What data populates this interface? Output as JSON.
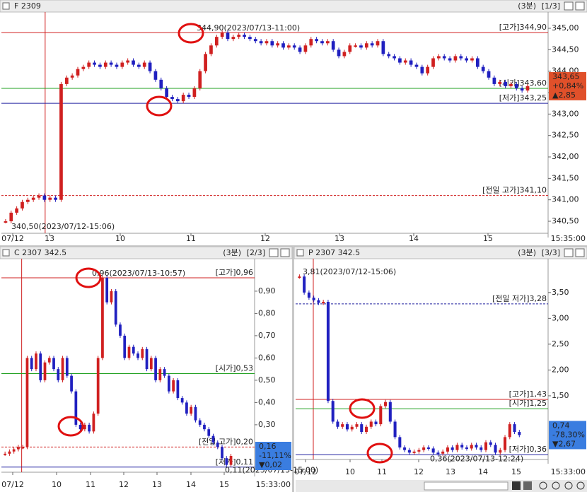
{
  "panels": [
    {
      "title": "F 2309",
      "period": "(3분)",
      "page": "[1/3]",
      "ylim": [
        340.22,
        345.33
      ],
      "yticks": [
        {
          "value": 340.5,
          "label": "340,50"
        },
        {
          "value": 341,
          "label": "341,00"
        },
        {
          "value": 341.5,
          "label": "341,50"
        },
        {
          "value": 342,
          "label": "342,00"
        },
        {
          "value": 342.5,
          "label": "342,50"
        },
        {
          "value": 343,
          "label": "343,00"
        },
        {
          "value": 343.5,
          "label": "343,50"
        },
        {
          "value": 344,
          "label": "344,00"
        },
        {
          "value": 344.5,
          "label": "344,50"
        },
        {
          "value": 345,
          "label": "345,00"
        }
      ],
      "categories": [
        "07/12",
        "13",
        "10",
        "11",
        "12",
        "13",
        "14",
        "15"
      ],
      "time_label": "15:35:00",
      "levels": [
        {
          "label": "[고가]344,90",
          "value": 344.9,
          "color": "#d02020",
          "dashed": false
        },
        {
          "label": "[시가]343,60",
          "value": 343.6,
          "color": "#20a020",
          "dashed": false
        },
        {
          "label": "[저가]343,25",
          "value": 343.25,
          "color": "#2020a0",
          "dashed": false
        },
        {
          "label": "[전일 고가]341,10",
          "value": 341.1,
          "color": "#d02020",
          "dashed": true
        }
      ],
      "price_box": {
        "lines": [
          "343,65",
          "+0,84%",
          "▲2,85"
        ],
        "color": "#e0502a"
      },
      "annotations": [
        "344,90(2023/07/13-11:00)",
        "340,50(2023/07/12-15:06)"
      ],
      "values": [
        340.5,
        340.7,
        340.8,
        340.95,
        341.0,
        341.05,
        341.1,
        341.0,
        341.05,
        341.0,
        343.7,
        343.85,
        343.9,
        344.05,
        344.1,
        344.2,
        344.15,
        344.1,
        344.2,
        344.15,
        344.1,
        344.2,
        344.25,
        344.15,
        344.1,
        344.2,
        344.0,
        343.8,
        343.6,
        343.4,
        343.35,
        343.3,
        343.45,
        343.4,
        343.6,
        344.0,
        344.4,
        344.6,
        344.8,
        344.9,
        344.75,
        344.8,
        344.85,
        344.8,
        344.75,
        344.7,
        344.65,
        344.7,
        344.6,
        344.65,
        344.55,
        344.6,
        344.55,
        344.45,
        344.6,
        344.75,
        344.7,
        344.65,
        344.7,
        344.5,
        344.35,
        344.45,
        344.6,
        344.6,
        344.55,
        344.65,
        344.6,
        344.7,
        344.4,
        344.35,
        344.3,
        344.2,
        344.25,
        344.15,
        344.1,
        343.95,
        344.1,
        344.3,
        344.35,
        344.3,
        344.25,
        344.35,
        344.3,
        344.25,
        344.3,
        344.1,
        344.0,
        343.85,
        343.7,
        343.75,
        343.65,
        343.7,
        343.6,
        343.55,
        343.65
      ]
    },
    {
      "title": "C 2307 342.5",
      "period": "(3분)",
      "page": "[2/3]",
      "ylim": [
        0.087,
        1.033
      ],
      "yticks": [
        {
          "value": 0.3,
          "label": "0,30"
        },
        {
          "value": 0.4,
          "label": "0,40"
        },
        {
          "value": 0.5,
          "label": "0,50"
        },
        {
          "value": 0.6,
          "label": "0,60"
        },
        {
          "value": 0.7,
          "label": "0,70"
        },
        {
          "value": 0.8,
          "label": "0,80"
        },
        {
          "value": 0.9,
          "label": "0,90"
        }
      ],
      "categories": [
        "07/12",
        "10",
        "11",
        "12",
        "13",
        "14",
        "15"
      ],
      "time_label": "15:33:00",
      "levels": [
        {
          "label": "[고가]0,96",
          "value": 0.96,
          "color": "#d02020",
          "dashed": false
        },
        {
          "label": "[시가]0,53",
          "value": 0.53,
          "color": "#20a020",
          "dashed": false
        },
        {
          "label": "[전일 고가]0,20",
          "value": 0.2,
          "color": "#d02020",
          "dashed": true
        },
        {
          "label": "[저가]0,11",
          "value": 0.11,
          "color": "#2020a0",
          "dashed": false
        }
      ],
      "price_box": {
        "lines": [
          "0,16",
          "-11,11%",
          "▼0,02"
        ],
        "color": "#3a7de0"
      },
      "annotations": [
        "0,96(2023/07/13-10:57)",
        "0,11(2023/07/13-15:00)"
      ],
      "values": [
        0.17,
        0.18,
        0.19,
        0.2,
        0.2,
        0.6,
        0.55,
        0.62,
        0.5,
        0.58,
        0.6,
        0.55,
        0.5,
        0.6,
        0.52,
        0.45,
        0.3,
        0.28,
        0.3,
        0.27,
        0.35,
        0.6,
        0.96,
        0.85,
        0.9,
        0.75,
        0.7,
        0.6,
        0.65,
        0.62,
        0.6,
        0.64,
        0.55,
        0.6,
        0.5,
        0.55,
        0.52,
        0.45,
        0.5,
        0.42,
        0.4,
        0.35,
        0.38,
        0.32,
        0.3,
        0.28,
        0.25,
        0.22,
        0.2,
        0.15,
        0.12,
        0.16
      ]
    },
    {
      "title": "P 2307 342.5",
      "period": "(3분)",
      "page": "[3/3]",
      "ylim": [
        0.267,
        4.1
      ],
      "yticks": [
        {
          "value": 1.5,
          "label": "1,50"
        },
        {
          "value": 2,
          "label": "2,00"
        },
        {
          "value": 2.5,
          "label": "2,50"
        },
        {
          "value": 3,
          "label": "3,00"
        },
        {
          "value": 3.5,
          "label": "3,50"
        }
      ],
      "categories": [
        "07/12",
        "10",
        "11",
        "12",
        "13",
        "14",
        "15"
      ],
      "time_label": "15:33:00",
      "levels": [
        {
          "label": "[전일 저가]3,28",
          "value": 3.28,
          "color": "#2020a0",
          "dashed": true
        },
        {
          "label": "[고가]1,43",
          "value": 1.43,
          "color": "#d02020",
          "dashed": false
        },
        {
          "label": "[시가]1,25",
          "value": 1.25,
          "color": "#20a020",
          "dashed": false
        },
        {
          "label": "[저가]0,36",
          "value": 0.36,
          "color": "#2020a0",
          "dashed": false
        }
      ],
      "price_box": {
        "lines": [
          "0,74",
          "-78,30%",
          "▼2,67"
        ],
        "color": "#3a7de0"
      },
      "annotations": [
        "3,81(2023/07/12-15:06)",
        "0,36(2023/07/13-12:24)"
      ],
      "values": [
        3.81,
        3.5,
        3.4,
        3.35,
        3.3,
        3.32,
        1.4,
        1.0,
        0.9,
        0.95,
        0.85,
        0.9,
        0.95,
        0.8,
        0.9,
        1.0,
        0.95,
        1.3,
        1.38,
        1.0,
        0.7,
        0.5,
        0.45,
        0.4,
        0.42,
        0.45,
        0.5,
        0.48,
        0.4,
        0.38,
        0.42,
        0.5,
        0.45,
        0.55,
        0.5,
        0.48,
        0.55,
        0.5,
        0.45,
        0.6,
        0.55,
        0.4,
        0.45,
        0.7,
        0.95,
        0.8,
        0.74
      ]
    }
  ]
}
